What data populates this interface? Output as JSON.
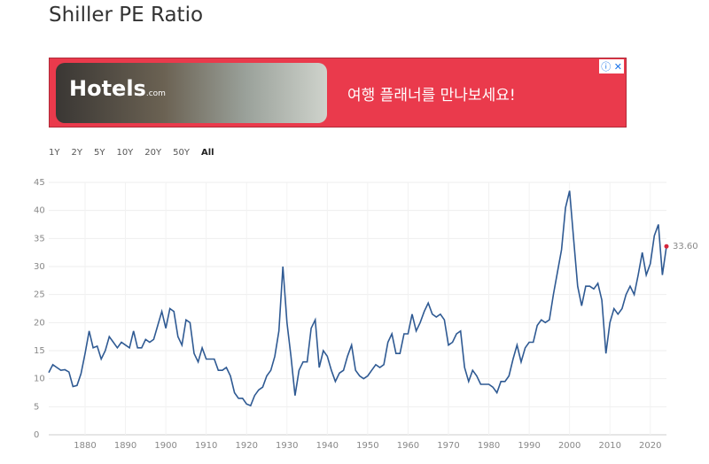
{
  "page": {
    "title": "Shiller PE Ratio",
    "ad": {
      "brand": "Hotels",
      "brand_suffix": ".com",
      "text": "여행 플래너를 만나보세요!"
    },
    "ranges": [
      "1Y",
      "2Y",
      "5Y",
      "10Y",
      "20Y",
      "50Y",
      "All"
    ]
  },
  "chart_data": {
    "type": "line",
    "color": "#2f5a93",
    "grid": true,
    "x": [
      1871,
      1872,
      1873,
      1874,
      1875,
      1876,
      1877,
      1878,
      1879,
      1880,
      1881,
      1882,
      1883,
      1884,
      1885,
      1886,
      1887,
      1888,
      1889,
      1890,
      1891,
      1892,
      1893,
      1894,
      1895,
      1896,
      1897,
      1898,
      1899,
      1900,
      1901,
      1902,
      1903,
      1904,
      1905,
      1906,
      1907,
      1908,
      1909,
      1910,
      1911,
      1912,
      1913,
      1914,
      1915,
      1916,
      1917,
      1918,
      1919,
      1920,
      1921,
      1922,
      1923,
      1924,
      1925,
      1926,
      1927,
      1928,
      1929,
      1930,
      1931,
      1932,
      1933,
      1934,
      1935,
      1936,
      1937,
      1938,
      1939,
      1940,
      1941,
      1942,
      1943,
      1944,
      1945,
      1946,
      1947,
      1948,
      1949,
      1950,
      1951,
      1952,
      1953,
      1954,
      1955,
      1956,
      1957,
      1958,
      1959,
      1960,
      1961,
      1962,
      1963,
      1964,
      1965,
      1966,
      1967,
      1968,
      1969,
      1970,
      1971,
      1972,
      1973,
      1974,
      1975,
      1976,
      1977,
      1978,
      1979,
      1980,
      1981,
      1982,
      1983,
      1984,
      1985,
      1986,
      1987,
      1988,
      1989,
      1990,
      1991,
      1992,
      1993,
      1994,
      1995,
      1996,
      1997,
      1998,
      1999,
      2000,
      2001,
      2002,
      2003,
      2004,
      2005,
      2006,
      2007,
      2008,
      2009,
      2010,
      2011,
      2012,
      2013,
      2014,
      2015,
      2016,
      2017,
      2018,
      2019,
      2020,
      2021,
      2022,
      2023,
      2024
    ],
    "values": [
      11.1,
      12.5,
      12.0,
      11.5,
      11.6,
      11.2,
      8.6,
      8.8,
      10.9,
      14.5,
      18.5,
      15.5,
      15.8,
      13.5,
      15.0,
      17.5,
      16.5,
      15.5,
      16.5,
      16.0,
      15.5,
      18.5,
      15.5,
      15.5,
      17.0,
      16.5,
      17.0,
      19.5,
      22.0,
      19.0,
      22.5,
      22.0,
      17.5,
      16.0,
      20.5,
      20.0,
      14.5,
      13.0,
      15.5,
      13.5,
      13.5,
      13.5,
      11.5,
      11.5,
      12.0,
      10.5,
      7.5,
      6.5,
      6.5,
      5.5,
      5.2,
      7.0,
      8.0,
      8.5,
      10.5,
      11.5,
      14.0,
      18.5,
      30.0,
      20.0,
      14.0,
      7.0,
      11.5,
      13.0,
      13.0,
      19.0,
      20.5,
      12.0,
      15.0,
      14.0,
      11.5,
      9.5,
      11.0,
      11.5,
      14.0,
      16.0,
      11.5,
      10.5,
      10.0,
      10.5,
      11.5,
      12.5,
      12.0,
      12.5,
      16.5,
      18.0,
      14.5,
      14.5,
      18.0,
      18.0,
      21.5,
      18.5,
      20.0,
      22.0,
      23.5,
      21.5,
      21.0,
      21.5,
      20.5,
      16.0,
      16.5,
      18.0,
      18.5,
      12.0,
      9.5,
      11.5,
      10.5,
      9.0,
      9.0,
      9.0,
      8.5,
      7.5,
      9.5,
      9.5,
      10.5,
      13.5,
      16.0,
      13.0,
      15.5,
      16.5,
      16.5,
      19.5,
      20.5,
      20.0,
      20.5,
      25.0,
      29.0,
      33.0,
      40.5,
      43.5,
      35.0,
      26.5,
      23.0,
      26.5,
      26.5,
      26.0,
      27.0,
      24.0,
      14.5,
      20.0,
      22.5,
      21.5,
      22.5,
      25.0,
      26.5,
      25.0,
      28.5,
      32.5,
      28.5,
      30.5,
      35.5,
      37.5,
      28.5,
      33.6
    ],
    "last_value_label": "33.60",
    "xlim": [
      1871,
      2024
    ],
    "xticks": [
      1880,
      1890,
      1900,
      1910,
      1920,
      1930,
      1940,
      1950,
      1960,
      1970,
      1980,
      1990,
      2000,
      2010,
      2020
    ],
    "ylim": [
      0,
      45
    ],
    "yticks": [
      0,
      5,
      10,
      15,
      20,
      25,
      30,
      35,
      40,
      45
    ]
  }
}
